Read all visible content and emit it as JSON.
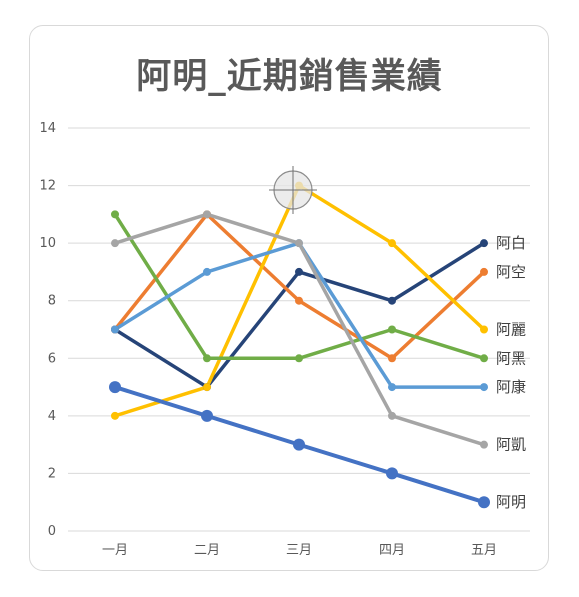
{
  "chart_data": {
    "type": "line",
    "title": "阿明_近期銷售業績",
    "categories": [
      "一月",
      "二月",
      "三月",
      "四月",
      "五月"
    ],
    "ylim": [
      0,
      14
    ],
    "yticks": [
      0,
      2,
      4,
      6,
      8,
      10,
      12,
      14
    ],
    "grid": true,
    "series": [
      {
        "name": "阿白",
        "values": [
          7,
          5,
          9,
          8,
          10
        ],
        "color": "#264478",
        "marker": "small",
        "width": 3.5
      },
      {
        "name": "阿空",
        "values": [
          7,
          11,
          8,
          6,
          9
        ],
        "color": "#ED7D31",
        "marker": "small",
        "width": 3.5
      },
      {
        "name": "阿麗",
        "values": [
          4,
          5,
          12,
          10,
          7
        ],
        "color": "#FFC000",
        "marker": "small",
        "width": 3.5
      },
      {
        "name": "阿黑",
        "values": [
          11,
          6,
          6,
          7,
          6
        ],
        "color": "#70AD47",
        "marker": "small",
        "width": 3.5
      },
      {
        "name": "阿康",
        "values": [
          7,
          9,
          10,
          5,
          5
        ],
        "color": "#5B9BD5",
        "marker": "small",
        "width": 3.5
      },
      {
        "name": "阿凱",
        "values": [
          10,
          11,
          10,
          4,
          3
        ],
        "color": "#A5A5A5",
        "marker": "small",
        "width": 3.5
      },
      {
        "name": "阿明",
        "values": [
          5,
          4,
          3,
          2,
          1
        ],
        "color": "#4472C4",
        "marker": "large",
        "width": 4
      }
    ]
  }
}
